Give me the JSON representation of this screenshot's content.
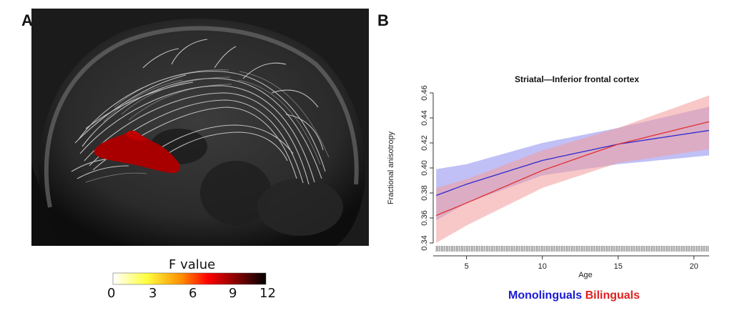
{
  "panel_a": {
    "letter": "A",
    "colorbar": {
      "title": "F value",
      "ticks": [
        "0",
        "3",
        "6",
        "9",
        "12"
      ],
      "colors": [
        "#ffffff",
        "#ffff00",
        "#ff8800",
        "#ff0000",
        "#8b0000",
        "#000000"
      ]
    }
  },
  "panel_b": {
    "letter": "B",
    "legend": [
      {
        "label": "Monolinguals",
        "color": "#1a1ad6"
      },
      {
        "label": "Bilinguals",
        "color": "#e02020"
      }
    ]
  },
  "chart_data": {
    "type": "line",
    "title": "Striatal—Inferior frontal cortex",
    "xlabel": "Age",
    "ylabel": "Fractional anisotropy",
    "xlim": [
      2.8,
      21
    ],
    "ylim": [
      0.34,
      0.46
    ],
    "xticks": [
      5,
      10,
      15,
      20
    ],
    "yticks": [
      "0.34",
      "0.36",
      "0.38",
      "0.40",
      "0.42",
      "0.44",
      "0.46"
    ],
    "series": [
      {
        "name": "Monolinguals",
        "color": "#2b2bd0",
        "band_color": "#8c8cf0",
        "x": [
          3,
          5,
          10,
          15,
          21
        ],
        "y": [
          0.378,
          0.387,
          0.406,
          0.419,
          0.43
        ],
        "lower": [
          0.358,
          0.372,
          0.394,
          0.403,
          0.41
        ],
        "upper": [
          0.399,
          0.403,
          0.42,
          0.432,
          0.449
        ]
      },
      {
        "name": "Bilinguals",
        "color": "#e03030",
        "band_color": "#f39a9a",
        "x": [
          3,
          5,
          10,
          15,
          21
        ],
        "y": [
          0.362,
          0.372,
          0.398,
          0.419,
          0.437
        ],
        "lower": [
          0.34,
          0.354,
          0.384,
          0.404,
          0.415
        ],
        "upper": [
          0.384,
          0.391,
          0.414,
          0.432,
          0.458
        ]
      }
    ],
    "rug": true,
    "grid": false
  }
}
